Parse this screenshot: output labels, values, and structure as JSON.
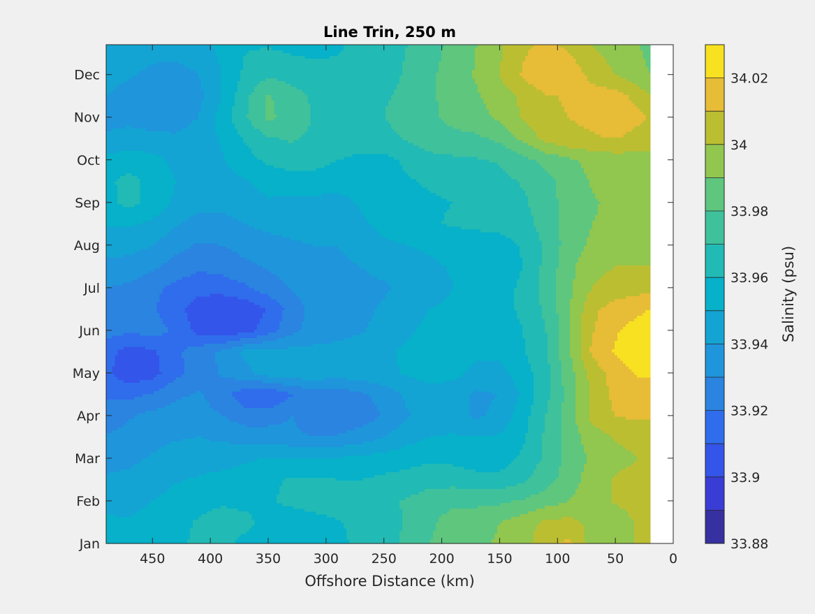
{
  "chart_data": {
    "type": "heatmap",
    "title": "Line Trin, 250 m",
    "xlabel": "Offshore Distance (km)",
    "ylabel": "",
    "colorbar_label": "Salinity (psu)",
    "x_reversed": true,
    "xlim": [
      0,
      490
    ],
    "ylim": [
      1,
      12.7
    ],
    "x_ticks": [
      450,
      400,
      350,
      300,
      250,
      200,
      150,
      100,
      50,
      0
    ],
    "x_tick_labels": [
      "450",
      "400",
      "350",
      "300",
      "250",
      "200",
      "150",
      "100",
      "50",
      "0"
    ],
    "y_ticks": [
      1,
      2,
      3,
      4,
      5,
      6,
      7,
      8,
      9,
      10,
      11,
      12
    ],
    "y_tick_labels": [
      "Jan",
      "Feb",
      "Mar",
      "Apr",
      "May",
      "Jun",
      "Jul",
      "Aug",
      "Sep",
      "Oct",
      "Nov",
      "Dec"
    ],
    "colorbar_ticks": [
      33.88,
      33.9,
      33.92,
      33.94,
      33.96,
      33.98,
      34,
      34.02
    ],
    "colorbar_tick_labels": [
      "33.88",
      "33.9",
      "33.92",
      "33.94",
      "33.96",
      "33.98",
      "34",
      "34.02"
    ],
    "clim": [
      33.88,
      34.03
    ],
    "contour_levels": [
      33.88,
      33.89,
      33.9,
      33.91,
      33.92,
      33.93,
      33.94,
      33.95,
      33.96,
      33.97,
      33.98,
      33.99,
      34,
      34.01,
      34.02,
      34.03
    ],
    "colormap": "parula",
    "data_extent_x": [
      20,
      490
    ],
    "grid_x": [
      490,
      470,
      450,
      430,
      410,
      390,
      370,
      350,
      330,
      310,
      290,
      270,
      250,
      230,
      210,
      190,
      170,
      150,
      130,
      110,
      90,
      70,
      50,
      30,
      20
    ],
    "grid_y": [
      1,
      1.5,
      2,
      2.5,
      3,
      3.5,
      4,
      4.5,
      5,
      5.5,
      6,
      6.5,
      7,
      7.5,
      8,
      8.5,
      9,
      9.5,
      10,
      10.5,
      11,
      11.5,
      12,
      12.7
    ],
    "salinity": [
      [
        33.954,
        33.955,
        33.954,
        33.958,
        33.962,
        33.962,
        33.958,
        33.955,
        33.953,
        33.955,
        33.958,
        33.962,
        33.966,
        33.972,
        33.98,
        33.986,
        33.988,
        33.991,
        33.995,
        34.008,
        34.012,
        33.995,
        33.99,
        34.003,
        34.003
      ],
      [
        33.952,
        33.951,
        33.953,
        33.957,
        33.961,
        33.963,
        33.962,
        33.957,
        33.954,
        33.955,
        33.959,
        33.963,
        33.966,
        33.971,
        33.978,
        33.985,
        33.987,
        33.99,
        33.995,
        34.002,
        34.003,
        33.997,
        33.993,
        34.002,
        34.003
      ],
      [
        33.946,
        33.947,
        33.95,
        33.954,
        33.957,
        33.959,
        33.958,
        33.959,
        33.962,
        33.966,
        33.967,
        33.966,
        33.968,
        33.971,
        33.975,
        33.977,
        33.977,
        33.978,
        33.981,
        33.985,
        33.99,
        33.996,
        34.001,
        34.005,
        34.005
      ],
      [
        33.941,
        33.942,
        33.944,
        33.949,
        33.951,
        33.953,
        33.955,
        33.958,
        33.961,
        33.961,
        33.96,
        33.96,
        33.962,
        33.964,
        33.966,
        33.966,
        33.963,
        33.963,
        33.968,
        33.976,
        33.985,
        33.995,
        34.001,
        34.003,
        34.002
      ],
      [
        33.937,
        33.938,
        33.941,
        33.944,
        33.945,
        33.946,
        33.948,
        33.951,
        33.951,
        33.951,
        33.951,
        33.952,
        33.954,
        33.956,
        33.958,
        33.957,
        33.955,
        33.955,
        33.962,
        33.972,
        33.983,
        33.992,
        33.997,
        34.0,
        34.0
      ],
      [
        33.931,
        33.933,
        33.937,
        33.939,
        33.94,
        33.938,
        33.936,
        33.935,
        33.932,
        33.93,
        33.931,
        33.935,
        33.94,
        33.946,
        33.95,
        33.951,
        33.95,
        33.951,
        33.958,
        33.972,
        33.985,
        33.995,
        34.001,
        34.003,
        34.003
      ],
      [
        33.925,
        33.929,
        33.933,
        33.935,
        33.934,
        33.93,
        33.924,
        33.925,
        33.93,
        33.924,
        33.92,
        33.924,
        33.931,
        33.939,
        33.944,
        33.944,
        33.938,
        33.943,
        33.956,
        33.97,
        33.985,
        34.003,
        34.01,
        34.012,
        34.012
      ],
      [
        33.918,
        33.917,
        33.921,
        33.928,
        33.931,
        33.924,
        33.913,
        33.909,
        33.919,
        33.925,
        33.924,
        33.928,
        33.934,
        33.942,
        33.946,
        33.944,
        33.938,
        33.94,
        33.952,
        33.967,
        33.984,
        34.002,
        34.013,
        34.014,
        34.014
      ],
      [
        33.912,
        33.903,
        33.906,
        33.917,
        33.925,
        33.931,
        33.937,
        33.945,
        33.947,
        33.946,
        33.945,
        33.946,
        33.948,
        33.951,
        33.954,
        33.953,
        33.947,
        33.947,
        33.955,
        33.967,
        33.986,
        34.004,
        34.015,
        34.021,
        34.022
      ],
      [
        33.914,
        33.905,
        33.908,
        33.918,
        33.925,
        33.932,
        33.942,
        33.944,
        33.943,
        33.943,
        33.943,
        33.945,
        33.948,
        33.952,
        33.955,
        33.955,
        33.952,
        33.952,
        33.959,
        33.968,
        33.989,
        34.012,
        34.021,
        34.026,
        34.027
      ],
      [
        33.924,
        33.922,
        33.924,
        33.918,
        33.906,
        33.902,
        33.905,
        33.915,
        33.927,
        33.934,
        33.937,
        33.939,
        33.943,
        33.948,
        33.953,
        33.953,
        33.953,
        33.954,
        33.96,
        33.97,
        33.988,
        34.009,
        34.019,
        34.024,
        34.026
      ],
      [
        33.927,
        33.926,
        33.921,
        33.913,
        33.905,
        33.901,
        33.903,
        33.911,
        33.924,
        33.934,
        33.937,
        33.938,
        33.941,
        33.945,
        33.95,
        33.952,
        33.954,
        33.956,
        33.962,
        33.972,
        33.989,
        34.008,
        34.014,
        34.018,
        34.02
      ],
      [
        33.93,
        33.928,
        33.923,
        33.917,
        33.913,
        33.914,
        33.918,
        33.925,
        33.931,
        33.936,
        33.938,
        33.938,
        33.939,
        33.942,
        33.946,
        33.95,
        33.954,
        33.956,
        33.962,
        33.974,
        33.988,
        34.0,
        34.004,
        34.006,
        34.007
      ],
      [
        33.937,
        33.935,
        33.932,
        33.926,
        33.922,
        33.924,
        33.928,
        33.931,
        33.935,
        33.938,
        33.938,
        33.94,
        33.942,
        33.945,
        33.948,
        33.951,
        33.954,
        33.955,
        33.96,
        33.973,
        33.987,
        33.997,
        34.0,
        34.0,
        34.0
      ],
      [
        33.945,
        33.944,
        33.94,
        33.933,
        33.929,
        33.93,
        33.933,
        33.936,
        33.939,
        33.94,
        33.94,
        33.944,
        33.948,
        33.95,
        33.952,
        33.954,
        33.955,
        33.956,
        33.961,
        33.972,
        33.985,
        33.992,
        33.995,
        33.996,
        33.996
      ],
      [
        33.951,
        33.951,
        33.948,
        33.941,
        33.936,
        33.936,
        33.94,
        33.943,
        33.943,
        33.943,
        33.944,
        33.948,
        33.953,
        33.956,
        33.959,
        33.961,
        33.962,
        33.963,
        33.966,
        33.974,
        33.984,
        33.99,
        33.992,
        33.993,
        33.993
      ],
      [
        33.957,
        33.963,
        33.956,
        33.948,
        33.943,
        33.943,
        33.946,
        33.949,
        33.948,
        33.947,
        33.947,
        33.951,
        33.956,
        33.958,
        33.959,
        33.96,
        33.963,
        33.965,
        33.968,
        33.976,
        33.984,
        33.989,
        33.992,
        33.993,
        33.993
      ],
      [
        33.958,
        33.963,
        33.957,
        33.95,
        33.946,
        33.946,
        33.949,
        33.953,
        33.955,
        33.955,
        33.954,
        33.953,
        33.956,
        33.959,
        33.961,
        33.962,
        33.965,
        33.967,
        33.971,
        33.977,
        33.984,
        33.991,
        33.993,
        33.994,
        33.995
      ],
      [
        33.953,
        33.955,
        33.953,
        33.947,
        33.945,
        33.949,
        33.956,
        33.962,
        33.965,
        33.964,
        33.96,
        33.957,
        33.957,
        33.962,
        33.967,
        33.968,
        33.969,
        33.971,
        33.977,
        33.983,
        33.988,
        33.993,
        33.995,
        33.996,
        33.997
      ],
      [
        33.942,
        33.944,
        33.943,
        33.942,
        33.946,
        33.951,
        33.961,
        33.969,
        33.971,
        33.968,
        33.966,
        33.966,
        33.967,
        33.971,
        33.975,
        33.977,
        33.978,
        33.982,
        33.992,
        34.003,
        34.008,
        34.009,
        34.01,
        34.006,
        34.004
      ],
      [
        33.936,
        33.937,
        33.934,
        33.934,
        33.94,
        33.954,
        33.969,
        33.982,
        33.976,
        33.969,
        33.968,
        33.969,
        33.97,
        33.974,
        33.978,
        33.983,
        33.986,
        33.992,
        34.001,
        34.008,
        34.01,
        34.012,
        34.019,
        34.012,
        34.009
      ],
      [
        33.94,
        33.937,
        33.932,
        33.931,
        33.937,
        33.95,
        33.967,
        33.981,
        33.974,
        33.968,
        33.966,
        33.967,
        33.969,
        33.972,
        33.978,
        33.985,
        33.989,
        33.995,
        34.002,
        34.009,
        34.011,
        34.014,
        34.014,
        34.006,
        34.0
      ],
      [
        33.942,
        33.941,
        33.937,
        33.936,
        33.94,
        33.95,
        33.962,
        33.968,
        33.966,
        33.963,
        33.962,
        33.963,
        33.967,
        33.971,
        33.978,
        33.985,
        33.991,
        34.0,
        34.011,
        34.02,
        34.016,
        34.007,
        34.0,
        33.992,
        33.99
      ],
      [
        33.948,
        33.948,
        33.945,
        33.945,
        33.946,
        33.953,
        33.959,
        33.959,
        33.957,
        33.957,
        33.959,
        33.962,
        33.966,
        33.97,
        33.976,
        33.983,
        33.99,
        33.998,
        34.008,
        34.012,
        34.008,
        34.0,
        33.994,
        33.99,
        33.988
      ]
    ]
  }
}
